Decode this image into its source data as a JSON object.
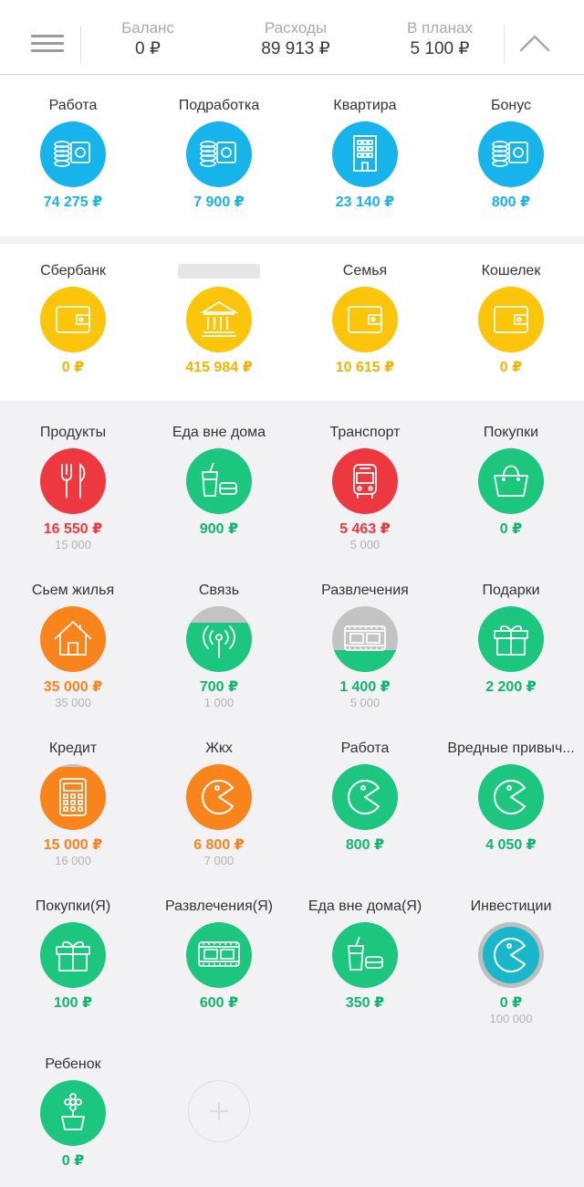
{
  "header": {
    "balance": {
      "label": "Баланс",
      "value": "0 ₽"
    },
    "expenses": {
      "label": "Расходы",
      "value": "89 913 ₽"
    },
    "planned": {
      "label": "В планах",
      "value": "5 100 ₽"
    }
  },
  "colors": {
    "income": "#17b4eb",
    "accounts": "#fcc40b",
    "expense_ok": "#1dc67f",
    "expense_warning": "#f9841c",
    "expense_over": "#ee3840"
  },
  "income": [
    {
      "name": "Работа",
      "amount": "74 275 ₽",
      "icon": "coins-icon"
    },
    {
      "name": "Подработка",
      "amount": "7 900 ₽",
      "icon": "coins-icon"
    },
    {
      "name": "Квартира",
      "amount": "23 140 ₽",
      "icon": "building-icon"
    },
    {
      "name": "Бонус",
      "amount": "800 ₽",
      "icon": "coins-icon"
    }
  ],
  "accounts": [
    {
      "name": "Сбербанк",
      "amount": "0 ₽",
      "icon": "wallet-icon"
    },
    {
      "name": "",
      "amount": "415 984 ₽",
      "icon": "bank-icon"
    },
    {
      "name": "Семья",
      "amount": "10 615 ₽",
      "icon": "wallet-icon"
    },
    {
      "name": "Кошелек",
      "amount": "0 ₽",
      "icon": "wallet-icon"
    }
  ],
  "expenses": [
    {
      "name": "Продукты",
      "amount": "16 550 ₽",
      "limit": "15 000",
      "icon": "fork-knife-icon"
    },
    {
      "name": "Еда вне дома",
      "amount": "900 ₽",
      "limit": "",
      "icon": "drink-burger-icon"
    },
    {
      "name": "Транспорт",
      "amount": "5 463 ₽",
      "limit": "5 000",
      "icon": "bus-icon"
    },
    {
      "name": "Покупки",
      "amount": "0 ₽",
      "limit": "",
      "icon": "shopping-bag-icon"
    },
    {
      "name": "Сьем жилья",
      "amount": "35 000 ₽",
      "limit": "35 000",
      "icon": "house-icon"
    },
    {
      "name": "Связь",
      "amount": "700 ₽",
      "limit": "1 000",
      "icon": "antenna-icon"
    },
    {
      "name": "Развлечения",
      "amount": "1 400 ₽",
      "limit": "5 000",
      "icon": "film-icon"
    },
    {
      "name": "Подарки",
      "amount": "2 200 ₽",
      "limit": "",
      "icon": "gift-icon"
    },
    {
      "name": "Кредит",
      "amount": "15 000 ₽",
      "limit": "16 000",
      "icon": "calculator-icon"
    },
    {
      "name": "Жкх",
      "amount": "6 800 ₽",
      "limit": "7 000",
      "icon": "pacman-icon"
    },
    {
      "name": "Работа",
      "amount": "800 ₽",
      "limit": "",
      "icon": "pacman-icon"
    },
    {
      "name": "Вредные привыч...",
      "amount": "4 050 ₽",
      "limit": "",
      "icon": "pacman-icon"
    },
    {
      "name": "Покупки(Я)",
      "amount": "100 ₽",
      "limit": "",
      "icon": "gift-icon"
    },
    {
      "name": "Развлечения(Я)",
      "amount": "600 ₽",
      "limit": "",
      "icon": "film-icon"
    },
    {
      "name": "Еда вне дома(Я)",
      "amount": "350 ₽",
      "limit": "",
      "icon": "drink-burger-icon"
    },
    {
      "name": "Инвестиции",
      "amount": "0 ₽",
      "limit": "100 000",
      "icon": "pacman-icon"
    },
    {
      "name": "Ребенок",
      "amount": "0 ₽",
      "limit": "",
      "icon": "flower-pot-icon"
    }
  ]
}
